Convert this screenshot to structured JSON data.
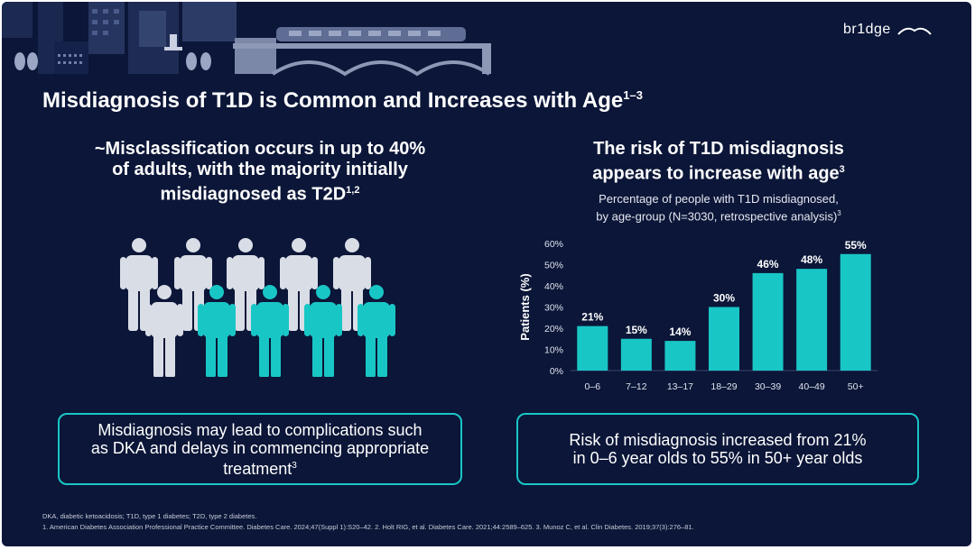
{
  "brand": {
    "logo_text": "br1dge"
  },
  "title": {
    "text": "Misdiagnosis of T1D is Common and Increases with Age",
    "sup": "1–3"
  },
  "left_panel": {
    "heading_line1": "~Misclassification occurs in up to 40%",
    "heading_line2": "of adults, with the majority initially",
    "heading_line3": "misdiagnosed as T2D",
    "heading_sup": "1,2",
    "people_total": 10,
    "people_highlighted": 4,
    "callout_text": "Misdiagnosis may lead to complications such as DKA and delays in commencing appropriate treatment",
    "callout_sup": "3"
  },
  "right_panel": {
    "heading_line1": "The risk of T1D misdiagnosis",
    "heading_line2": "appears to increase with age",
    "heading_sup": "3",
    "subtitle_line1": "Percentage of people with T1D misdiagnosed,",
    "subtitle_line2": "by age-group (N=3030, retrospective analysis)",
    "subtitle_sup": "3",
    "callout_line1": "Risk of misdiagnosis increased from 21%",
    "callout_line2": "in 0–6 year olds to 55% in 50+ year olds"
  },
  "chart_data": {
    "type": "bar",
    "categories": [
      "0–6",
      "7–12",
      "13–17",
      "18–29",
      "30–39",
      "40–49",
      "50+"
    ],
    "values": [
      21,
      15,
      14,
      30,
      46,
      48,
      55
    ],
    "value_labels": [
      "21%",
      "15%",
      "14%",
      "30%",
      "46%",
      "48%",
      "55%"
    ],
    "ylabel": "Patients (%)",
    "ylim": [
      0,
      60
    ],
    "yticks": [
      0,
      10,
      20,
      30,
      40,
      50,
      60
    ],
    "ytick_labels": [
      "0%",
      "10%",
      "20%",
      "30%",
      "40%",
      "50%",
      "60%"
    ],
    "grid": false,
    "bar_color": "#19c6c6"
  },
  "colors": {
    "background": "#0b1638",
    "accent": "#19c6c6",
    "people_neutral": "#d9dde6"
  },
  "footnotes": {
    "line1": "DKA, diabetic ketoacidosis; T1D, type 1 diabetes; T2D, type 2 diabetes.",
    "line2": "1. American Diabetes Association Professional Practice Committee. Diabetes Care. 2024;47(Suppl 1):S20–42. 2. Holt RIG, et al. Diabetes Care. 2021;44:2589–625. 3. Munoz C, et al. Clin Diabetes. 2019;37(3):276–81."
  }
}
